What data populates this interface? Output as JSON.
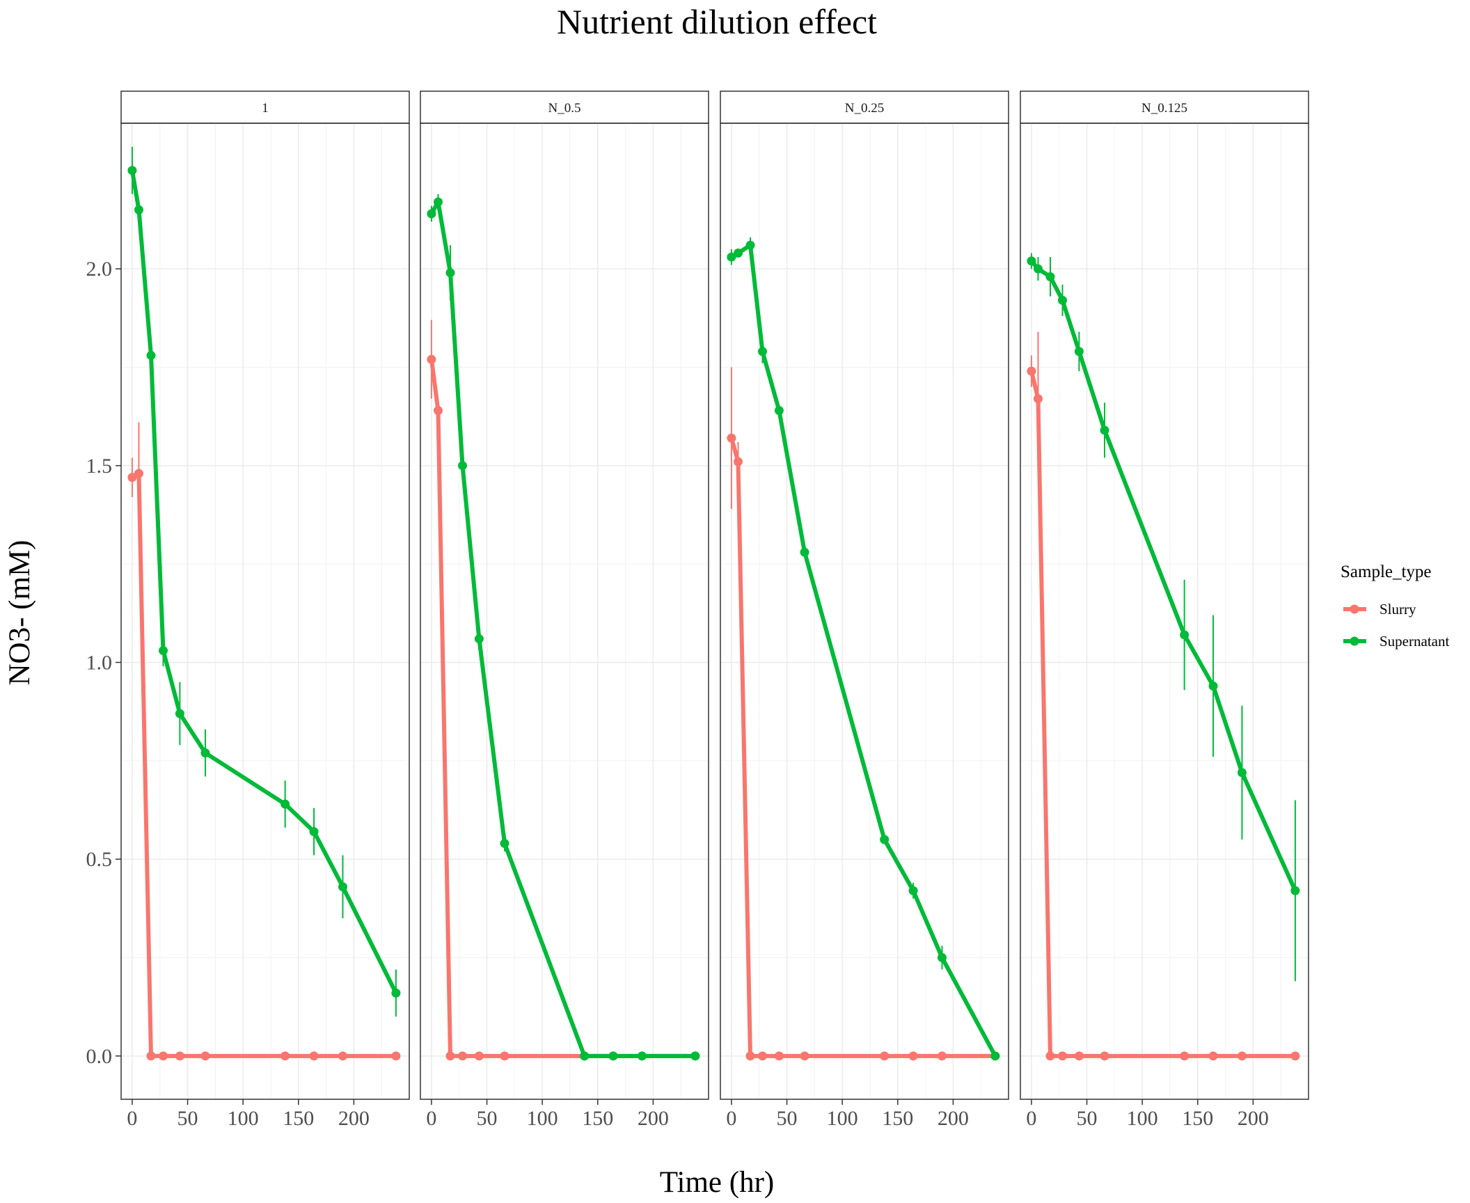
{
  "chart_data": {
    "type": "line",
    "title": "Nutrient dilution effect",
    "xlabel": "Time (hr)",
    "ylabel": "NO3- (mM)",
    "xlim": [
      -10,
      250
    ],
    "ylim": [
      -0.11,
      2.37
    ],
    "x_ticks": [
      0,
      50,
      100,
      150,
      200
    ],
    "y_ticks": [
      0.0,
      0.5,
      1.0,
      1.5,
      2.0
    ],
    "y_tick_labels": [
      "0.0",
      "0.5",
      "1.0",
      "1.5",
      "2.0"
    ],
    "grid": true,
    "legend": {
      "title": "Sample_type",
      "position": "right",
      "entries": [
        {
          "name": "Slurry",
          "color": "#F8766D"
        },
        {
          "name": "Supernatant",
          "color": "#00BA38"
        }
      ]
    },
    "panels": [
      {
        "label": "1",
        "series": [
          {
            "name": "Slurry",
            "color": "#F8766D",
            "x": [
              0,
              6,
              17,
              28,
              43,
              66,
              138,
              164,
              190,
              238
            ],
            "y": [
              1.47,
              1.48,
              0.0,
              0.0,
              0.0,
              0.0,
              0.0,
              0.0,
              0.0,
              0.0
            ],
            "err": [
              0.05,
              0.13,
              0,
              0,
              0,
              0,
              0,
              0,
              0,
              0
            ]
          },
          {
            "name": "Supernatant",
            "color": "#00BA38",
            "x": [
              0,
              6,
              17,
              28,
              43,
              66,
              138,
              164,
              190,
              238
            ],
            "y": [
              2.25,
              2.15,
              1.78,
              1.03,
              0.87,
              0.77,
              0.64,
              0.57,
              0.43,
              0.16
            ],
            "err": [
              0.06,
              0.02,
              0.03,
              0.04,
              0.08,
              0.06,
              0.06,
              0.06,
              0.08,
              0.06
            ]
          }
        ]
      },
      {
        "label": "N_0.5",
        "series": [
          {
            "name": "Slurry",
            "color": "#F8766D",
            "x": [
              0,
              6,
              17,
              28,
              43,
              66,
              138,
              164,
              190,
              238
            ],
            "y": [
              1.77,
              1.64,
              0.0,
              0.0,
              0.0,
              0.0,
              0.0,
              0.0,
              0.0,
              0.0
            ],
            "err": [
              0.1,
              0.02,
              0,
              0,
              0,
              0,
              0,
              0,
              0,
              0
            ]
          },
          {
            "name": "Supernatant",
            "color": "#00BA38",
            "x": [
              0,
              6,
              17,
              28,
              43,
              66,
              138,
              164,
              190,
              238
            ],
            "y": [
              2.14,
              2.17,
              1.99,
              1.5,
              1.06,
              0.54,
              0.0,
              0.0,
              0.0,
              0.0
            ],
            "err": [
              0.02,
              0.02,
              0.07,
              0.02,
              0.02,
              0.02,
              0,
              0,
              0,
              0
            ]
          }
        ]
      },
      {
        "label": "N_0.25",
        "series": [
          {
            "name": "Slurry",
            "color": "#F8766D",
            "x": [
              0,
              6,
              17,
              28,
              43,
              66,
              138,
              164,
              190,
              238
            ],
            "y": [
              1.57,
              1.51,
              0.0,
              0.0,
              0.0,
              0.0,
              0.0,
              0.0,
              0.0,
              0.0
            ],
            "err": [
              0.18,
              0.05,
              0,
              0,
              0,
              0,
              0,
              0,
              0,
              0
            ]
          },
          {
            "name": "Supernatant",
            "color": "#00BA38",
            "x": [
              0,
              6,
              17,
              28,
              43,
              66,
              138,
              164,
              190,
              238
            ],
            "y": [
              2.03,
              2.04,
              2.06,
              1.79,
              1.64,
              1.28,
              0.55,
              0.42,
              0.25,
              0.0
            ],
            "err": [
              0.02,
              0.01,
              0.02,
              0.03,
              0.01,
              0.01,
              0.01,
              0.02,
              0.03,
              0
            ]
          }
        ]
      },
      {
        "label": "N_0.125",
        "series": [
          {
            "name": "Slurry",
            "color": "#F8766D",
            "x": [
              0,
              6,
              17,
              28,
              43,
              66,
              138,
              164,
              190,
              238
            ],
            "y": [
              1.74,
              1.67,
              0.0,
              0.0,
              0.0,
              0.0,
              0.0,
              0.0,
              0.0,
              0.0
            ],
            "err": [
              0.04,
              0.17,
              0,
              0,
              0,
              0,
              0,
              0,
              0,
              0
            ]
          },
          {
            "name": "Supernatant",
            "color": "#00BA38",
            "x": [
              0,
              6,
              17,
              28,
              43,
              66,
              138,
              164,
              190,
              238
            ],
            "y": [
              2.02,
              2.0,
              1.98,
              1.92,
              1.79,
              1.59,
              1.07,
              0.94,
              0.72,
              0.42
            ],
            "err": [
              0.02,
              0.03,
              0.05,
              0.04,
              0.05,
              0.07,
              0.14,
              0.18,
              0.17,
              0.23
            ]
          }
        ]
      }
    ]
  }
}
